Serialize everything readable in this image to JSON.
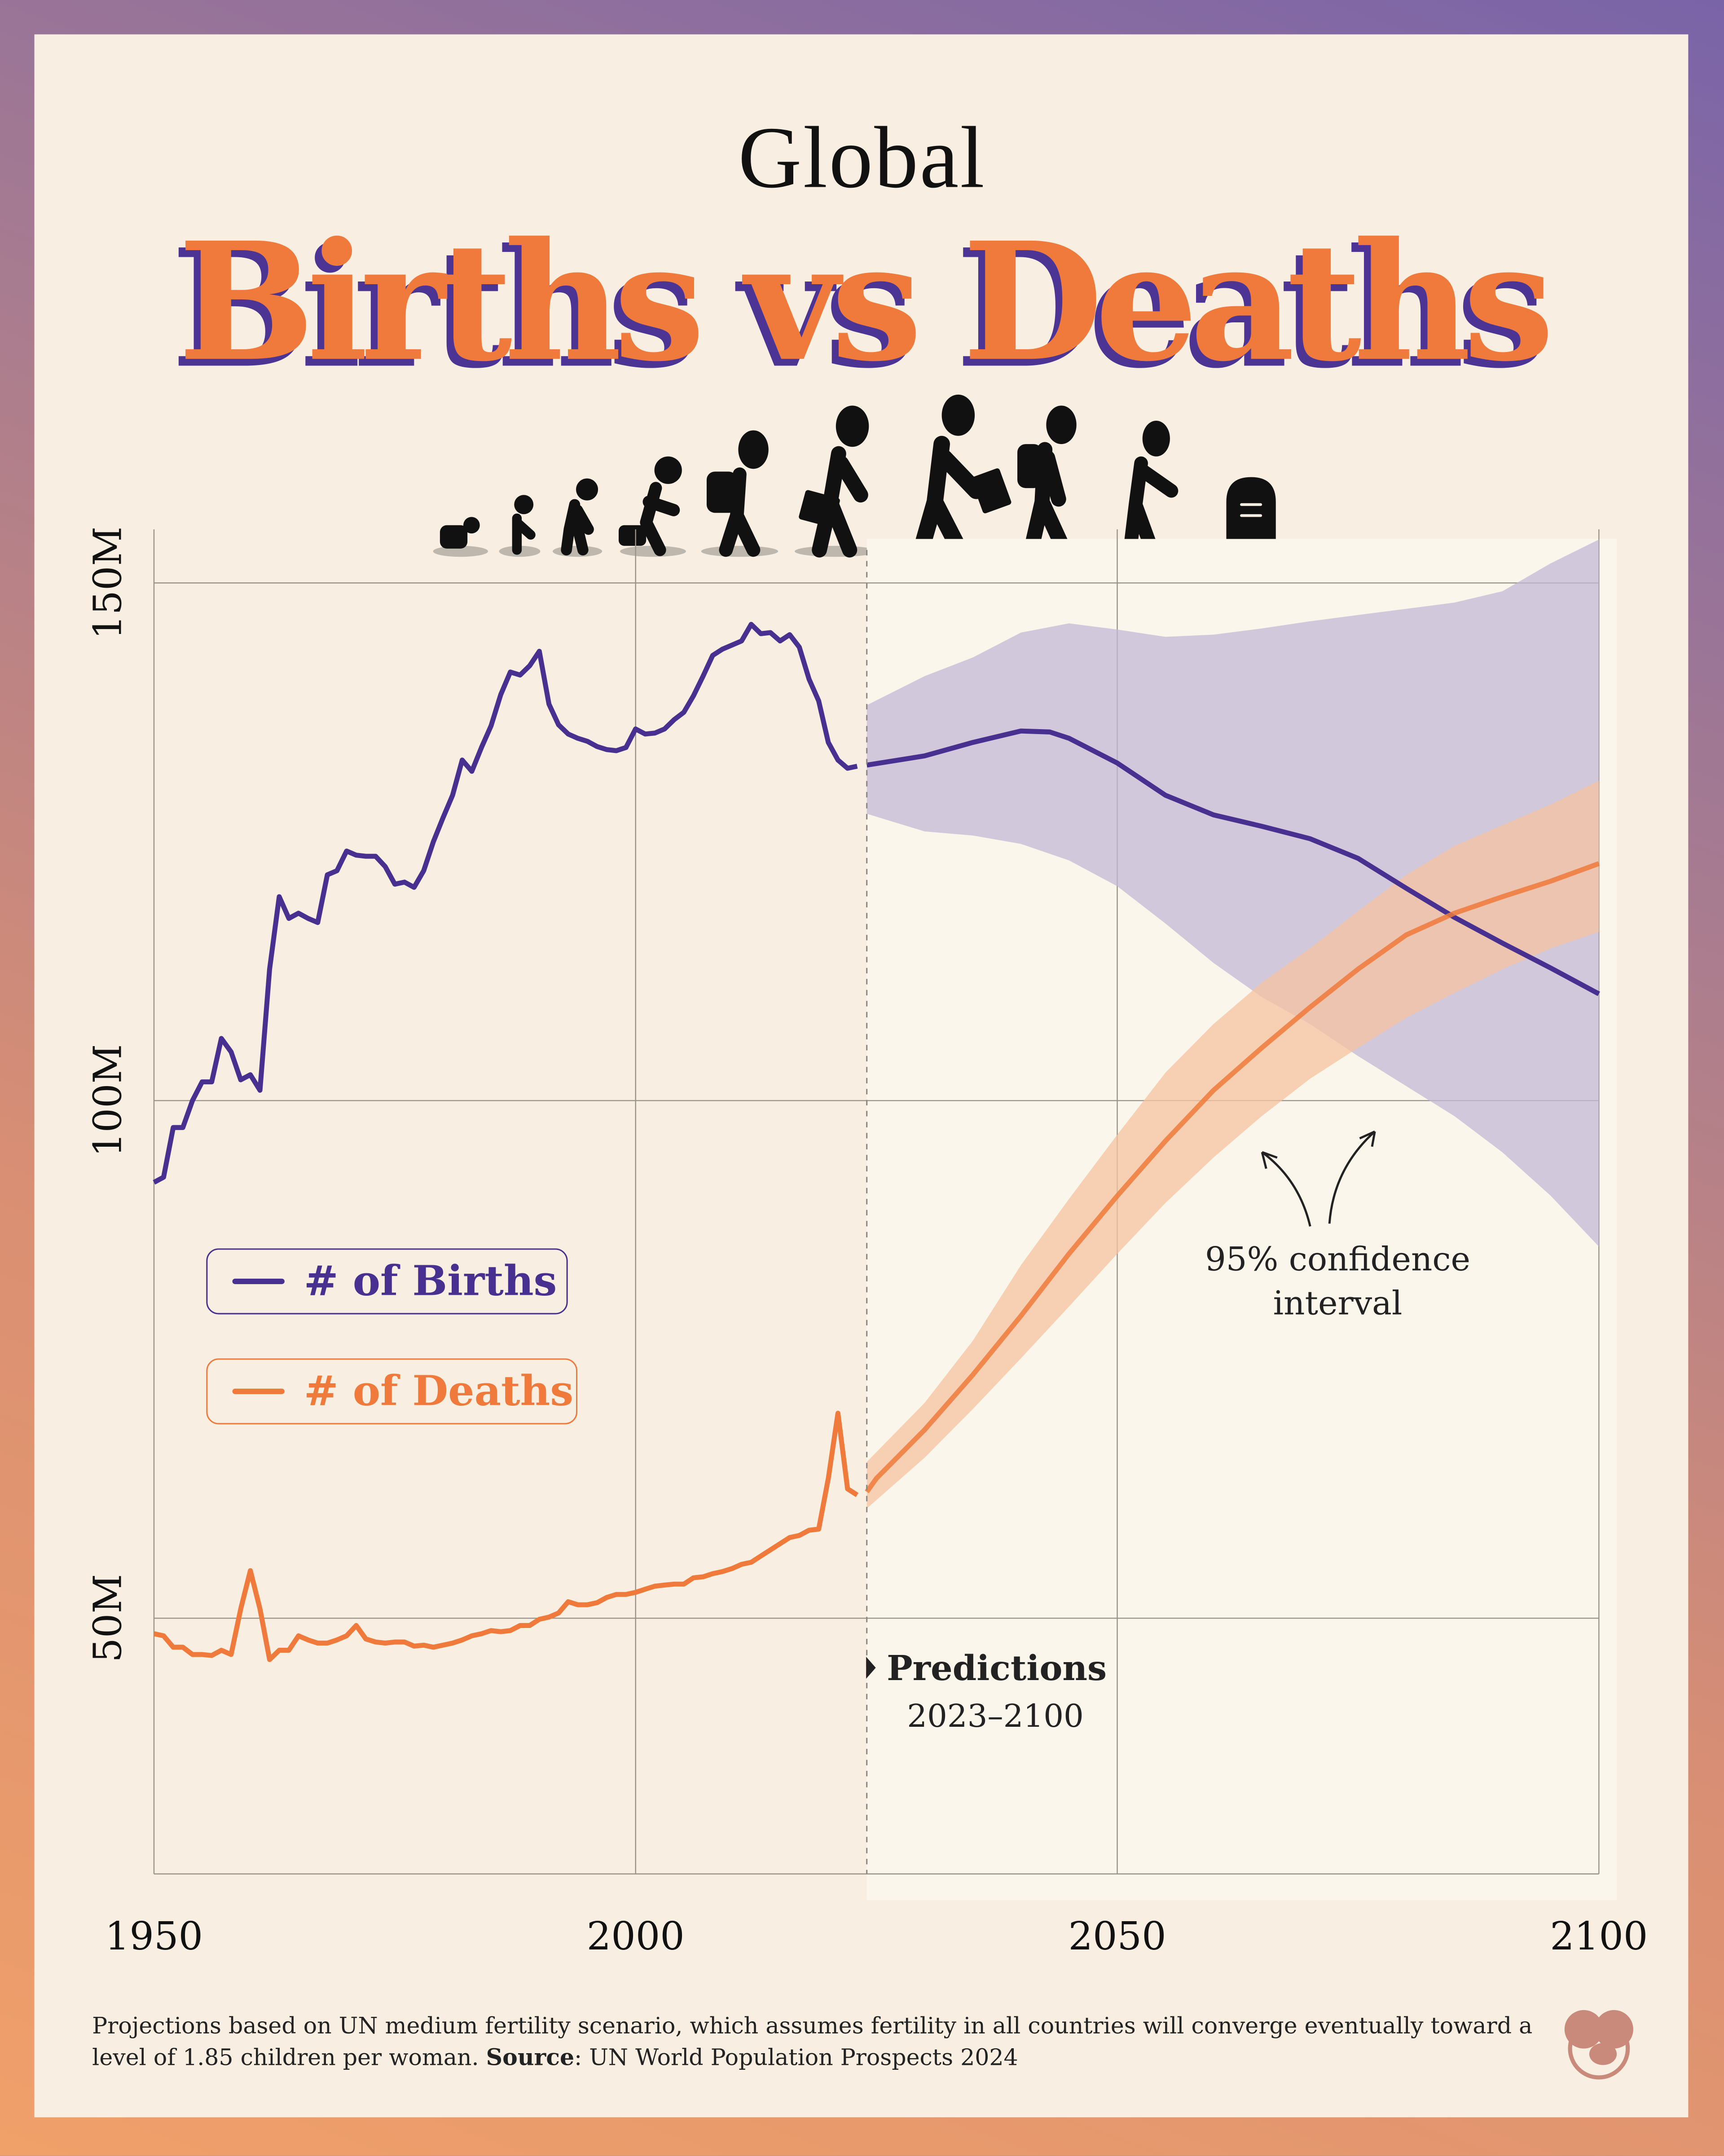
{
  "header": {
    "kicker": "Global",
    "title": "Births vs Deaths"
  },
  "legend": {
    "births": "# of Births",
    "deaths": "# of Deaths"
  },
  "annotations": {
    "confidence_line1": "95% confidence",
    "confidence_line2": "interval",
    "predictions_title": "Predictions",
    "predictions_range": "2023–2100"
  },
  "footer": {
    "note": "Projections based on UN medium fertility scenario, which assumes fertility in all countries will converge eventually toward a level of 1.85 children per woman.",
    "source_label": "Source",
    "source_text": ": UN World Population Prospects 2024"
  },
  "icons": [
    "baby-crawling-icon",
    "toddler-icon",
    "child-icon",
    "kneeling-child-icon",
    "student-backpack-icon",
    "young-adult-briefcase-icon",
    "adult-briefcase-icon",
    "middle-aged-backpack-icon",
    "elderly-icon",
    "tombstone-icon"
  ],
  "colors": {
    "births": "#47308f",
    "deaths": "#ef7a3b",
    "births_band": "#c3b8d6",
    "deaths_band": "#f6c3a0",
    "background": "#f8efe2"
  },
  "chart_data": {
    "type": "line",
    "title": "Births vs Deaths",
    "xlabel": "",
    "ylabel": "",
    "xlim": [
      1950,
      2100
    ],
    "ylim": [
      25,
      150
    ],
    "x_ticks": [
      "1950",
      "2000",
      "2050",
      "2100"
    ],
    "y_ticks": [
      "50M",
      "100M",
      "150M"
    ],
    "grid": true,
    "legend_position": "left",
    "prediction_start": 2024,
    "series": [
      {
        "name": "# of Births",
        "historical": {
          "x": [
            1950,
            1951,
            1952,
            1953,
            1954,
            1955,
            1956,
            1957,
            1958,
            1959,
            1960,
            1961,
            1962,
            1963,
            1964,
            1965,
            1966,
            1967,
            1968,
            1969,
            1970,
            1971,
            1972,
            1973,
            1974,
            1975,
            1976,
            1977,
            1978,
            1979,
            1980,
            1981,
            1982,
            1983,
            1984,
            1985,
            1986,
            1987,
            1988,
            1989,
            1990,
            1991,
            1992,
            1993,
            1994,
            1995,
            1996,
            1997,
            1998,
            1999,
            2000,
            2001,
            2002,
            2003,
            2004,
            2005,
            2006,
            2007,
            2008,
            2009,
            2010,
            2011,
            2012,
            2013,
            2014,
            2015,
            2016,
            2017,
            2018,
            2019,
            2020,
            2021,
            2022,
            2023
          ],
          "y": [
            92.1,
            92.6,
            97.4,
            97.4,
            100,
            101.8,
            101.8,
            106,
            104.7,
            102,
            102.5,
            101,
            112.7,
            119.7,
            117.6,
            118.1,
            117.6,
            117.2,
            121.8,
            122.2,
            124.1,
            123.7,
            123.6,
            123.6,
            122.6,
            120.9,
            121.1,
            120.6,
            122.2,
            125,
            127.3,
            129.5,
            132.9,
            131.8,
            134.1,
            136.2,
            139.2,
            141.4,
            141.1,
            142,
            143.4,
            138.3,
            136.3,
            135.4,
            135,
            134.7,
            134.2,
            133.9,
            133.8,
            134.1,
            135.9,
            135.4,
            135.5,
            135.9,
            136.8,
            137.5,
            139.1,
            141,
            143,
            143.6,
            144,
            144.4,
            146,
            145.1,
            145.2,
            144.4,
            145,
            143.8,
            140.7,
            138.6,
            134.6,
            132.9,
            132.1,
            132.3
          ]
        },
        "projection": {
          "x": [
            2024,
            2030,
            2035,
            2040,
            2043,
            2045,
            2050,
            2055,
            2060,
            2065,
            2070,
            2075,
            2080,
            2085,
            2090,
            2095,
            2100
          ],
          "y": [
            132.4,
            133.3,
            134.6,
            135.7,
            135.6,
            135,
            132.6,
            129.5,
            127.6,
            126.5,
            125.3,
            123.4,
            120.5,
            117.7,
            115.2,
            112.8,
            110.3
          ]
        },
        "confidence_95": {
          "x": [
            2024,
            2030,
            2035,
            2040,
            2045,
            2050,
            2055,
            2060,
            2065,
            2070,
            2075,
            2080,
            2085,
            2090,
            2095,
            2100
          ],
          "upper": [
            138.2,
            141,
            142.8,
            145.2,
            146.1,
            145.5,
            144.8,
            145,
            145.6,
            146.3,
            146.9,
            147.5,
            148.1,
            149.2,
            151.9,
            154.2
          ],
          "lower": [
            127.7,
            126,
            125.6,
            124.8,
            123.2,
            120.7,
            117.1,
            113.3,
            110,
            107.4,
            104.3,
            101.4,
            98.5,
            95,
            90.8,
            85.9
          ]
        }
      },
      {
        "name": "# of Deaths",
        "historical": {
          "x": [
            1950,
            1951,
            1952,
            1953,
            1954,
            1955,
            1956,
            1957,
            1958,
            1959,
            1960,
            1961,
            1962,
            1963,
            1964,
            1965,
            1966,
            1967,
            1968,
            1969,
            1970,
            1971,
            1972,
            1973,
            1974,
            1975,
            1976,
            1977,
            1978,
            1979,
            1980,
            1981,
            1982,
            1983,
            1984,
            1985,
            1986,
            1987,
            1988,
            1989,
            1990,
            1991,
            1992,
            1993,
            1994,
            1995,
            1996,
            1997,
            1998,
            1999,
            2000,
            2001,
            2002,
            2003,
            2004,
            2005,
            2006,
            2007,
            2008,
            2009,
            2010,
            2011,
            2012,
            2013,
            2014,
            2015,
            2016,
            2017,
            2018,
            2019,
            2020,
            2021,
            2022,
            2023
          ],
          "y": [
            48.5,
            48.3,
            47.2,
            47.2,
            46.5,
            46.5,
            46.4,
            46.9,
            46.5,
            50.9,
            54.6,
            50.9,
            46,
            46.9,
            46.9,
            48.3,
            47.9,
            47.6,
            47.6,
            47.9,
            48.3,
            49.3,
            48,
            47.7,
            47.6,
            47.7,
            47.7,
            47.3,
            47.4,
            47.2,
            47.4,
            47.6,
            47.9,
            48.3,
            48.5,
            48.8,
            48.7,
            48.8,
            49.3,
            49.3,
            49.9,
            50.1,
            50.5,
            51.6,
            51.3,
            51.3,
            51.5,
            52,
            52.3,
            52.3,
            52.5,
            52.8,
            53.1,
            53.2,
            53.3,
            53.3,
            53.9,
            54,
            54.3,
            54.5,
            54.8,
            55.2,
            55.4,
            56,
            56.6,
            57.2,
            57.8,
            58,
            58.5,
            58.6,
            63.5,
            69.8,
            62.5,
            61.9
          ]
        },
        "projection": {
          "x": [
            2024,
            2025,
            2030,
            2035,
            2040,
            2045,
            2050,
            2055,
            2060,
            2065,
            2070,
            2075,
            2080,
            2085,
            2090,
            2095,
            2100
          ],
          "y": [
            62.2,
            63.5,
            68.2,
            73.5,
            79.2,
            85.2,
            90.8,
            96.1,
            101,
            105.1,
            109,
            112.7,
            116,
            118.1,
            119.7,
            121.2,
            122.9
          ]
        },
        "confidence_95": {
          "x": [
            2024,
            2030,
            2035,
            2040,
            2045,
            2050,
            2055,
            2060,
            2065,
            2070,
            2075,
            2080,
            2085,
            2090,
            2095,
            2100
          ],
          "upper": [
            65.1,
            70.8,
            76.8,
            84.1,
            90.5,
            96.7,
            102.7,
            107.4,
            111.4,
            114.7,
            118.3,
            121.8,
            124.6,
            126.6,
            128.6,
            130.9
          ],
          "lower": [
            60.6,
            65.5,
            70.2,
            75.1,
            80.1,
            85.2,
            90.1,
            94.5,
            98.5,
            102.1,
            105.1,
            108,
            110.4,
            112.7,
            114.7,
            116.3
          ]
        }
      }
    ]
  }
}
